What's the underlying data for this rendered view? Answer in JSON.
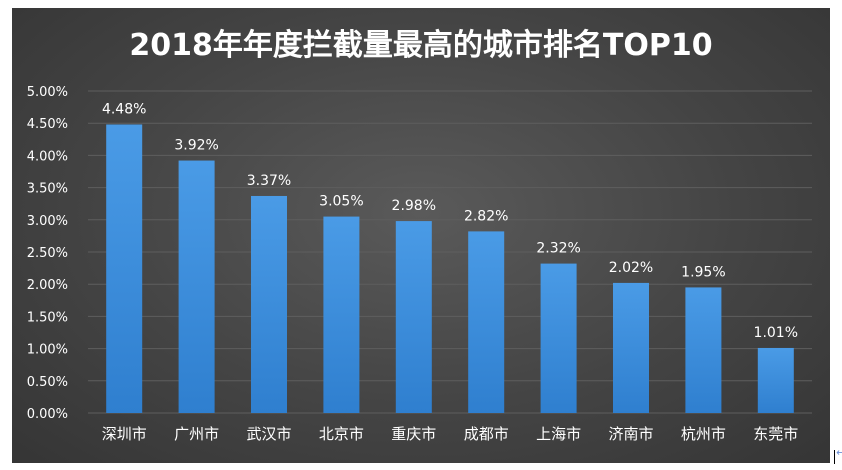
{
  "chart_data": {
    "type": "bar",
    "title": "2018年年度拦截量最高的城市排名TOP10",
    "xlabel": "",
    "ylabel": "",
    "categories": [
      "深圳市",
      "广州市",
      "武汉市",
      "北京市",
      "重庆市",
      "成都市",
      "上海市",
      "济南市",
      "杭州市",
      "东莞市"
    ],
    "values": [
      4.48,
      3.92,
      3.37,
      3.05,
      2.98,
      2.82,
      2.32,
      2.02,
      1.95,
      1.01
    ],
    "value_labels": [
      "4.48%",
      "3.92%",
      "3.37%",
      "3.05%",
      "2.98%",
      "2.82%",
      "2.32%",
      "2.02%",
      "1.95%",
      "1.01%"
    ],
    "ylim": [
      0,
      5
    ],
    "yticks": [
      "0.00%",
      "0.50%",
      "1.00%",
      "1.50%",
      "2.00%",
      "2.50%",
      "3.00%",
      "3.50%",
      "4.00%",
      "4.50%",
      "5.00%"
    ],
    "grid": true,
    "legend": "none",
    "colors": {
      "bar_top": "#4a9be6",
      "bar_bottom": "#2f7fcf",
      "background": "#454545",
      "text": "#ffffff",
      "grid": "#5e5e5e"
    }
  }
}
